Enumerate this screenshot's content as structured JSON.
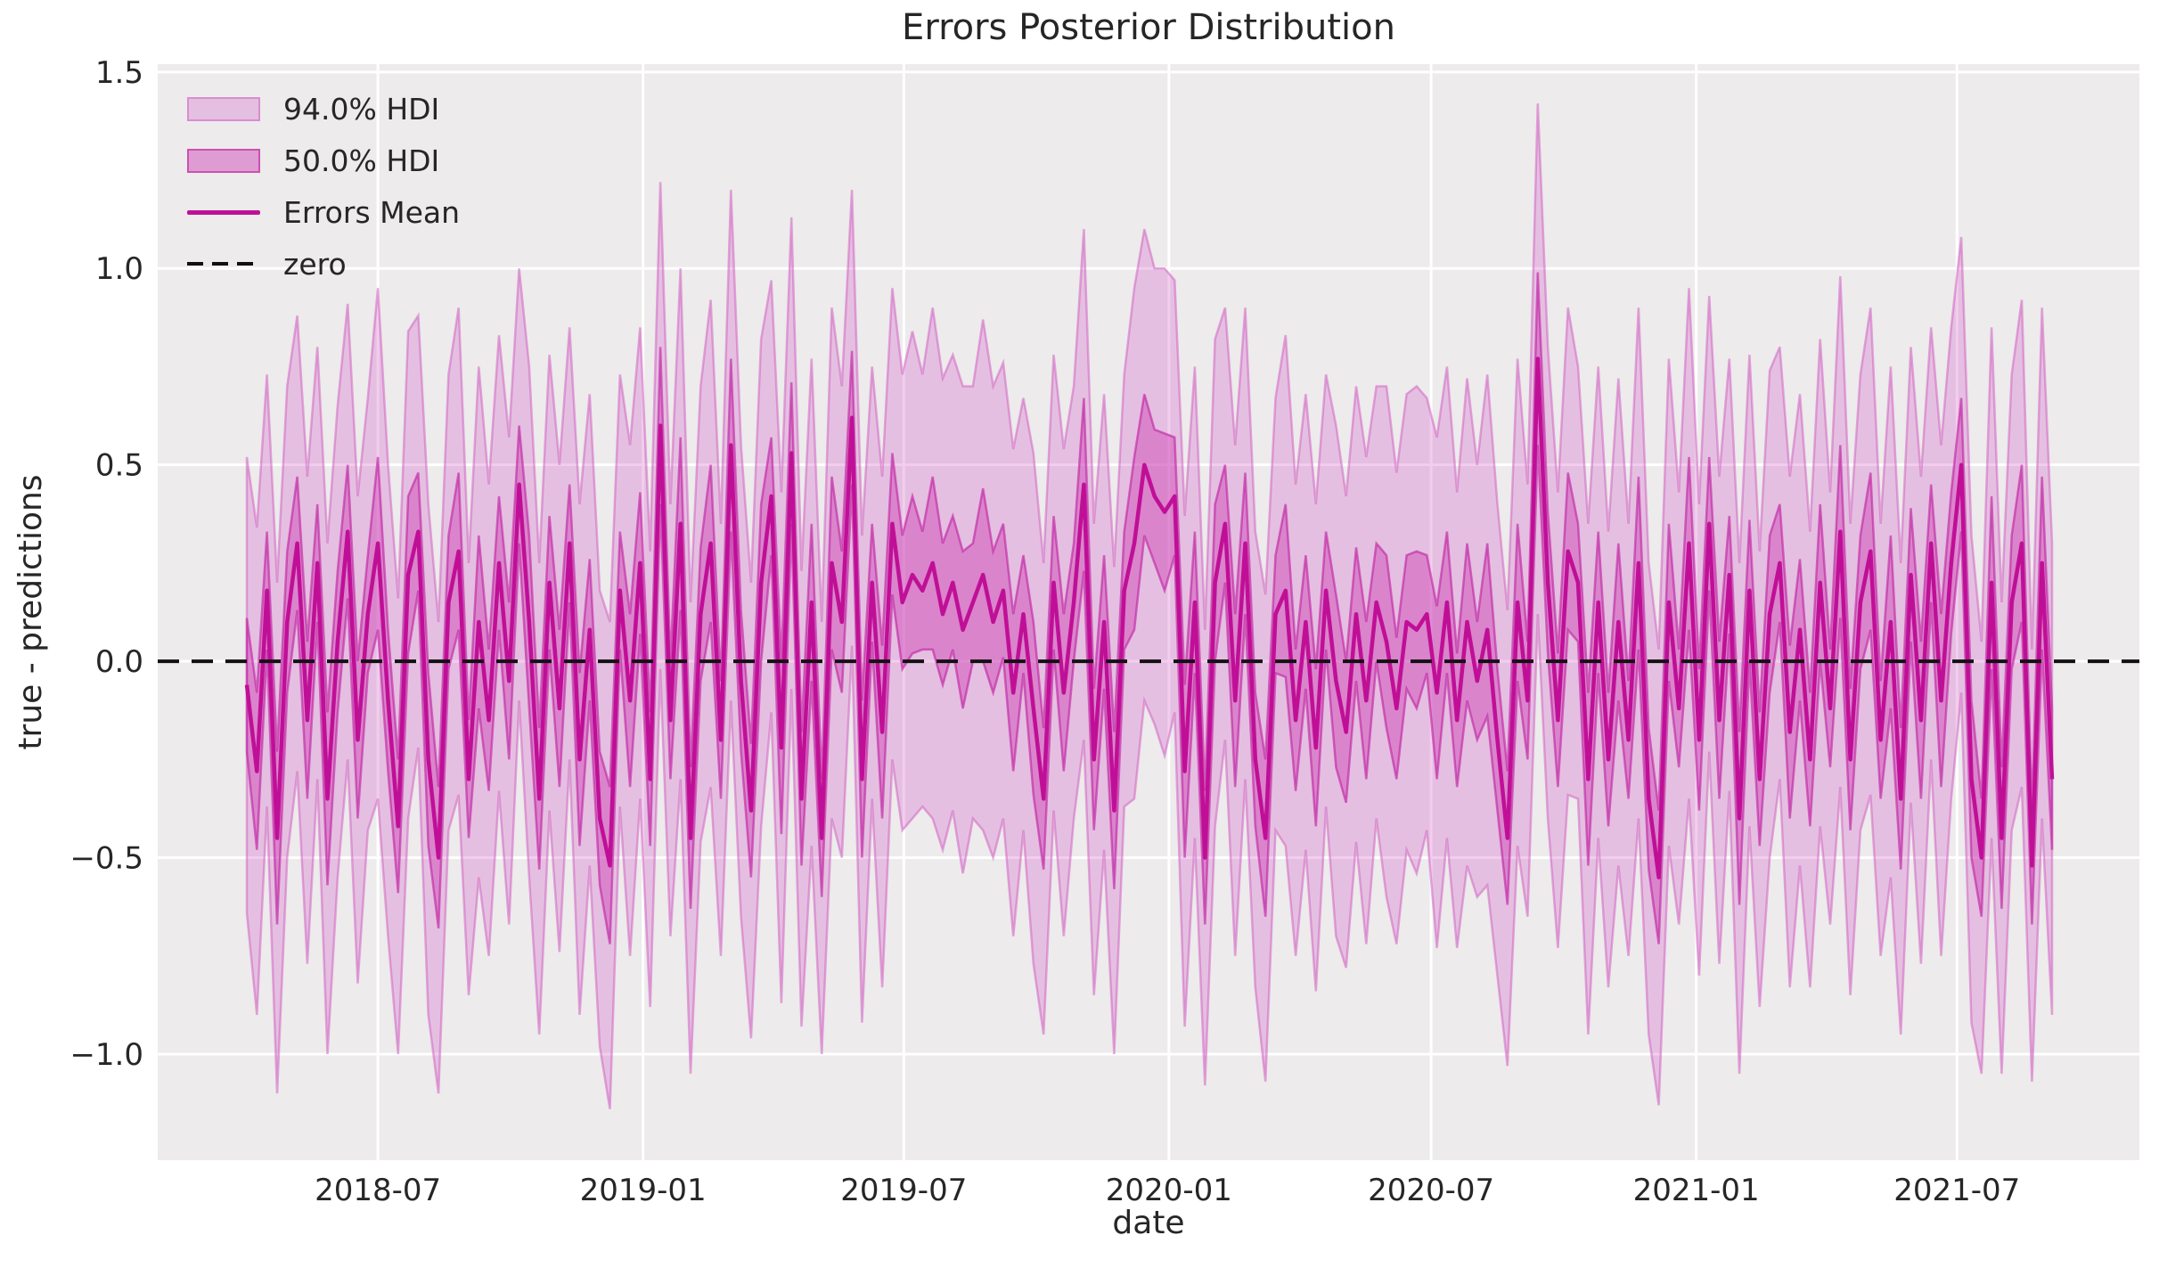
{
  "figure": {
    "title": "Errors Posterior Distribution"
  },
  "axes": {
    "xlabel": "date",
    "ylabel": "true - predictions",
    "x_ticks": [
      {
        "label": "2018-07",
        "date": "2018-07-01"
      },
      {
        "label": "2019-01",
        "date": "2019-01-01"
      },
      {
        "label": "2019-07",
        "date": "2019-07-01"
      },
      {
        "label": "2020-01",
        "date": "2020-01-01"
      },
      {
        "label": "2020-07",
        "date": "2020-07-01"
      },
      {
        "label": "2021-01",
        "date": "2021-01-01"
      },
      {
        "label": "2021-07",
        "date": "2021-07-01"
      }
    ],
    "y_ticks": [
      {
        "label": "1.5",
        "value": 1.5
      },
      {
        "label": "1.0",
        "value": 1.0
      },
      {
        "label": "0.5",
        "value": 0.5
      },
      {
        "label": "0.0",
        "value": 0.0
      },
      {
        "label": "−0.5",
        "value": -0.5
      },
      {
        "label": "−1.0",
        "value": -1.0
      }
    ]
  },
  "legend": {
    "items": [
      {
        "label": "94.0% HDI",
        "kind": "band",
        "fill": "rgba(213,88,198,0.30)",
        "edge": "rgba(210,100,195,0.55)"
      },
      {
        "label": "50.0% HDI",
        "kind": "band",
        "fill": "rgba(205,60,180,0.45)",
        "edge": "rgba(190,30,160,0.60)"
      },
      {
        "label": "Errors Mean",
        "kind": "line",
        "color": "#c00f97"
      },
      {
        "label": "zero",
        "kind": "dashed-line",
        "color": "#111111"
      }
    ]
  },
  "colors": {
    "plot_bg": "#edebec",
    "grid": "#ffffff",
    "hdi94_fill": "rgba(213,88,198,0.30)",
    "hdi94_edge": "rgba(210,100,195,0.55)",
    "hdi50_fill": "rgba(205,60,180,0.45)",
    "hdi50_edge": "rgba(190,30,160,0.60)",
    "mean": "#c00f97",
    "zero": "#111111",
    "text": "#262626"
  },
  "chart_data": {
    "type": "line",
    "subtype": "posterior-mean-with-hdi-bands",
    "title": "Errors Posterior Distribution",
    "xlabel": "date",
    "ylabel": "true - predictions",
    "legend_entries": [
      "94.0% HDI",
      "50.0% HDI",
      "Errors Mean",
      "zero"
    ],
    "legend_position": "upper-left",
    "grid": true,
    "x_start_date": "2018-04-01",
    "x_freq_days": 7,
    "n_points": 180,
    "ylim": [
      -1.27,
      1.52
    ],
    "x_tick_labels": [
      "2018-07",
      "2019-01",
      "2019-07",
      "2020-01",
      "2020-07",
      "2021-01",
      "2021-07"
    ],
    "y_tick_values": [
      1.5,
      1.0,
      0.5,
      0.0,
      -0.5,
      -1.0
    ],
    "zero_line_y": 0,
    "band_rule": "hdi_low[i] = mean[i] - half_width[i]; hdi_high[i] = mean[i] + half_width[i]",
    "mean": [
      -0.06,
      -0.28,
      0.18,
      -0.45,
      0.1,
      0.3,
      -0.15,
      0.25,
      -0.35,
      0.05,
      0.33,
      -0.2,
      0.12,
      0.3,
      -0.1,
      -0.42,
      0.22,
      0.33,
      -0.25,
      -0.5,
      0.15,
      0.28,
      -0.3,
      0.1,
      -0.15,
      0.25,
      -0.05,
      0.45,
      0.1,
      -0.35,
      0.2,
      -0.12,
      0.3,
      -0.25,
      0.08,
      -0.4,
      -0.52,
      0.18,
      -0.1,
      0.25,
      -0.3,
      0.6,
      -0.15,
      0.35,
      -0.45,
      0.12,
      0.3,
      -0.2,
      0.55,
      -0.05,
      -0.38,
      0.2,
      0.42,
      -0.22,
      0.53,
      -0.35,
      0.15,
      -0.45,
      0.25,
      0.1,
      0.62,
      -0.3,
      0.2,
      -0.18,
      0.35,
      0.15,
      0.22,
      0.18,
      0.25,
      0.12,
      0.2,
      0.08,
      0.15,
      0.22,
      0.1,
      0.18,
      -0.08,
      0.12,
      -0.12,
      -0.35,
      0.2,
      -0.08,
      0.15,
      0.45,
      -0.25,
      0.1,
      -0.38,
      0.18,
      0.3,
      0.5,
      0.42,
      0.38,
      0.42,
      -0.28,
      0.15,
      -0.5,
      0.2,
      0.35,
      -0.1,
      0.3,
      -0.25,
      -0.45,
      0.12,
      0.18,
      -0.15,
      0.1,
      -0.22,
      0.18,
      -0.05,
      -0.18,
      0.12,
      -0.1,
      0.15,
      0.05,
      -0.12,
      0.1,
      0.08,
      0.12,
      -0.08,
      0.15,
      -0.15,
      0.1,
      -0.05,
      0.08,
      -0.2,
      -0.45,
      0.15,
      -0.1,
      0.77,
      0.2,
      -0.15,
      0.28,
      0.2,
      -0.3,
      0.15,
      -0.25,
      0.1,
      -0.2,
      0.25,
      -0.35,
      -0.55,
      0.15,
      -0.12,
      0.3,
      -0.2,
      0.35,
      -0.15,
      0.22,
      -0.4,
      0.18,
      -0.3,
      0.12,
      0.25,
      -0.18,
      0.08,
      -0.25,
      0.2,
      -0.12,
      0.33,
      -0.25,
      0.15,
      0.28,
      -0.2,
      0.1,
      -0.35,
      0.22,
      -0.15,
      0.3,
      -0.1,
      0.25,
      0.5,
      -0.3,
      -0.5,
      0.2,
      -0.45,
      0.15,
      0.3,
      -0.52,
      0.25,
      -0.3
    ],
    "hdi50_half_width": [
      0.17,
      0.2,
      0.15,
      0.22,
      0.18,
      0.17,
      0.2,
      0.15,
      0.22,
      0.18,
      0.17,
      0.2,
      0.15,
      0.22,
      0.18,
      0.17,
      0.2,
      0.15,
      0.22,
      0.18,
      0.17,
      0.2,
      0.15,
      0.22,
      0.18,
      0.17,
      0.2,
      0.15,
      0.22,
      0.18,
      0.17,
      0.2,
      0.15,
      0.22,
      0.18,
      0.17,
      0.2,
      0.15,
      0.22,
      0.18,
      0.17,
      0.2,
      0.15,
      0.22,
      0.18,
      0.17,
      0.2,
      0.15,
      0.22,
      0.18,
      0.17,
      0.2,
      0.15,
      0.22,
      0.18,
      0.17,
      0.2,
      0.15,
      0.22,
      0.18,
      0.17,
      0.2,
      0.15,
      0.22,
      0.18,
      0.17,
      0.2,
      0.15,
      0.22,
      0.18,
      0.17,
      0.2,
      0.15,
      0.22,
      0.18,
      0.17,
      0.2,
      0.15,
      0.22,
      0.18,
      0.17,
      0.2,
      0.15,
      0.22,
      0.18,
      0.17,
      0.2,
      0.15,
      0.22,
      0.18,
      0.17,
      0.2,
      0.15,
      0.22,
      0.18,
      0.17,
      0.2,
      0.15,
      0.22,
      0.18,
      0.17,
      0.2,
      0.15,
      0.22,
      0.18,
      0.17,
      0.2,
      0.15,
      0.22,
      0.18,
      0.17,
      0.2,
      0.15,
      0.22,
      0.18,
      0.17,
      0.2,
      0.15,
      0.22,
      0.18,
      0.17,
      0.2,
      0.15,
      0.22,
      0.18,
      0.17,
      0.2,
      0.15,
      0.22,
      0.18,
      0.17,
      0.2,
      0.15,
      0.22,
      0.18,
      0.17,
      0.2,
      0.15,
      0.22,
      0.18,
      0.17,
      0.2,
      0.15,
      0.22,
      0.18,
      0.17,
      0.2,
      0.15,
      0.22,
      0.18,
      0.17,
      0.2,
      0.15,
      0.22,
      0.18,
      0.17,
      0.2,
      0.15,
      0.22,
      0.18,
      0.17,
      0.2,
      0.15,
      0.22,
      0.18,
      0.17,
      0.2,
      0.15,
      0.22,
      0.18,
      0.17,
      0.2,
      0.15,
      0.22,
      0.18,
      0.17,
      0.2,
      0.15,
      0.22,
      0.18
    ],
    "hdi94_half_width": [
      0.58,
      0.62,
      0.55,
      0.65,
      0.6,
      0.58,
      0.62,
      0.55,
      0.65,
      0.6,
      0.58,
      0.62,
      0.55,
      0.65,
      0.6,
      0.58,
      0.62,
      0.55,
      0.65,
      0.6,
      0.58,
      0.62,
      0.55,
      0.65,
      0.6,
      0.58,
      0.62,
      0.55,
      0.65,
      0.6,
      0.58,
      0.62,
      0.55,
      0.65,
      0.6,
      0.58,
      0.62,
      0.55,
      0.65,
      0.6,
      0.58,
      0.62,
      0.55,
      0.65,
      0.6,
      0.58,
      0.62,
      0.55,
      0.65,
      0.6,
      0.58,
      0.62,
      0.55,
      0.65,
      0.6,
      0.58,
      0.62,
      0.55,
      0.65,
      0.6,
      0.58,
      0.62,
      0.55,
      0.65,
      0.6,
      0.58,
      0.62,
      0.55,
      0.65,
      0.6,
      0.58,
      0.62,
      0.55,
      0.65,
      0.6,
      0.58,
      0.62,
      0.55,
      0.65,
      0.6,
      0.58,
      0.62,
      0.55,
      0.65,
      0.6,
      0.58,
      0.62,
      0.55,
      0.65,
      0.6,
      0.58,
      0.62,
      0.55,
      0.65,
      0.6,
      0.58,
      0.62,
      0.55,
      0.65,
      0.6,
      0.58,
      0.62,
      0.55,
      0.65,
      0.6,
      0.58,
      0.62,
      0.55,
      0.65,
      0.6,
      0.58,
      0.62,
      0.55,
      0.65,
      0.6,
      0.58,
      0.62,
      0.55,
      0.65,
      0.6,
      0.58,
      0.62,
      0.55,
      0.65,
      0.6,
      0.58,
      0.62,
      0.55,
      0.65,
      0.6,
      0.58,
      0.62,
      0.55,
      0.65,
      0.6,
      0.58,
      0.62,
      0.55,
      0.65,
      0.6,
      0.58,
      0.62,
      0.55,
      0.65,
      0.6,
      0.58,
      0.62,
      0.55,
      0.65,
      0.6,
      0.58,
      0.62,
      0.55,
      0.65,
      0.6,
      0.58,
      0.62,
      0.55,
      0.65,
      0.6,
      0.58,
      0.62,
      0.55,
      0.65,
      0.6,
      0.58,
      0.62,
      0.55,
      0.65,
      0.6,
      0.58,
      0.62,
      0.55,
      0.65,
      0.6,
      0.58,
      0.62,
      0.55,
      0.65,
      0.6
    ]
  }
}
